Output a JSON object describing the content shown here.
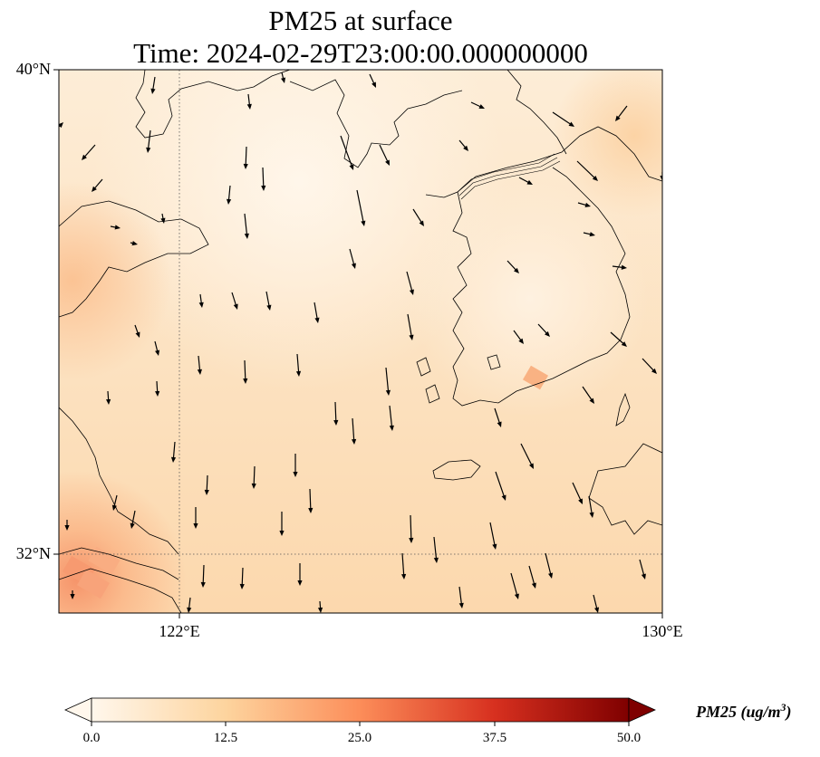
{
  "title": {
    "line1": "PM25 at surface",
    "line2": "Time: 2024-02-29T23:00:00.000000000"
  },
  "axes": {
    "lat_labels": [
      "40°N",
      "32°N"
    ],
    "lon_labels": [
      "122°E",
      "130°E"
    ],
    "extent": {
      "lon_min": 120,
      "lon_max": 130,
      "lat_min": 31,
      "lat_max": 40
    },
    "gridlines": "dotted"
  },
  "colorbar": {
    "label": "PM25 (ug/m",
    "label_sup": "3",
    "label_end": ")",
    "ticks": [
      "0.0",
      "12.5",
      "25.0",
      "37.5",
      "50.0"
    ],
    "min": 0,
    "max": 50,
    "extend": "both",
    "colormap": "OrRd",
    "colors": [
      "#fff7ec",
      "#fdd49e",
      "#fc8d59",
      "#d7301f",
      "#7f0000"
    ]
  },
  "field": {
    "description_colors": {
      "sea_background": "#fde9cf",
      "north_light": "#fef3e4",
      "southwest_high": "#fbb88a"
    }
  },
  "vectors": {
    "variable": "wind",
    "color": "#000000"
  }
}
